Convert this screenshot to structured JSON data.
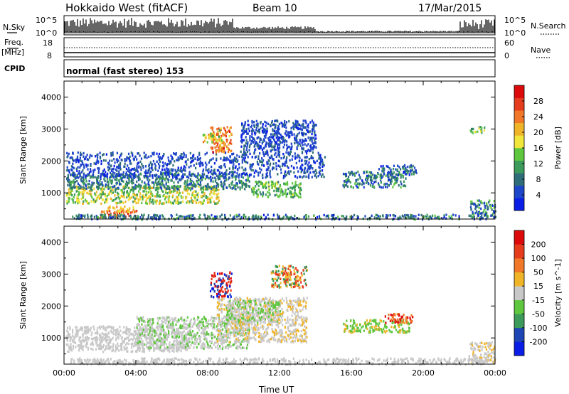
{
  "header": {
    "station": "Hokkaido West (fitACF)",
    "beam": "Beam 10",
    "date": "17/Mar/2015"
  },
  "strip": {
    "nsky_label": "N.Sky",
    "nsky_ticks": [
      "10^5",
      "10^0"
    ],
    "nsearch_label": "N.Search",
    "nsearch_ticks": [
      "10^5",
      "10^0"
    ],
    "freq_label_1": "Freq.",
    "freq_label_2": "[MHz]",
    "freq_ticks": [
      "18",
      "8"
    ],
    "nave_label": "Nave",
    "nave_ticks": [
      "60",
      "0"
    ],
    "cpid_label": "CPID",
    "cpid_text": "normal (fast stereo) 153"
  },
  "chart_data": [
    {
      "type": "heatmap",
      "name": "power",
      "ylabel": "Slant Range [km]",
      "xlabel": "",
      "y_ticks": [
        "1000",
        "2000",
        "3000",
        "4000"
      ],
      "ylim": [
        180,
        4500
      ],
      "xlim": [
        0,
        24
      ],
      "colorbar": {
        "label": "Power [dB]",
        "ticks": [
          "4",
          "8",
          "12",
          "16",
          "20",
          "24",
          "28"
        ],
        "colors": [
          "#0a1ee6",
          "#1e46c8",
          "#2f6e78",
          "#3c9a5a",
          "#5fc640",
          "#f0e63c",
          "#f0b428",
          "#f07828",
          "#e63c1e",
          "#dc0a0a"
        ],
        "range": [
          0,
          32
        ]
      },
      "regions": [
        {
          "t": [
            0.1,
            8.6
          ],
          "r": [
            700,
            1250
          ],
          "v": [
            12,
            16,
            20
          ]
        },
        {
          "t": [
            0.1,
            10.3
          ],
          "r": [
            1150,
            1650
          ],
          "v": [
            6,
            9,
            12
          ]
        },
        {
          "t": [
            0.1,
            14.5
          ],
          "r": [
            1500,
            2300
          ],
          "v": [
            3,
            5,
            7
          ]
        },
        {
          "t": [
            9.8,
            14.0
          ],
          "r": [
            2300,
            3300
          ],
          "v": [
            3,
            5,
            7
          ]
        },
        {
          "t": [
            10.4,
            13.2
          ],
          "r": [
            900,
            1400
          ],
          "v": [
            10,
            14,
            16
          ]
        },
        {
          "t": [
            2.0,
            4.2
          ],
          "r": [
            280,
            480
          ],
          "v": [
            24,
            28,
            30
          ]
        },
        {
          "t": [
            2.2,
            4.0
          ],
          "r": [
            430,
            620
          ],
          "v": [
            18,
            21,
            23
          ]
        },
        {
          "t": [
            8.1,
            9.3
          ],
          "r": [
            2300,
            3100
          ],
          "v": [
            20,
            24,
            28
          ]
        },
        {
          "t": [
            7.7,
            8.8
          ],
          "r": [
            2600,
            3000
          ],
          "v": [
            14,
            18,
            22
          ]
        },
        {
          "t": [
            15.5,
            19.0
          ],
          "r": [
            1200,
            1700
          ],
          "v": [
            4,
            8,
            12
          ]
        },
        {
          "t": [
            17.5,
            19.6
          ],
          "r": [
            1600,
            1900
          ],
          "v": [
            4,
            6,
            10
          ]
        },
        {
          "t": [
            22.6,
            24.0
          ],
          "r": [
            250,
            800
          ],
          "v": [
            4,
            8,
            14
          ]
        },
        {
          "t": [
            22.5,
            23.4
          ],
          "r": [
            2900,
            3100
          ],
          "v": [
            10,
            14,
            18
          ]
        },
        {
          "t": [
            0.3,
            23.5
          ],
          "r": [
            200,
            350
          ],
          "v": [
            4,
            8,
            12
          ]
        }
      ]
    },
    {
      "type": "heatmap",
      "name": "velocity",
      "ylabel": "Slant Range [km]",
      "xlabel": "Time UT",
      "y_ticks": [
        "1000",
        "2000",
        "3000",
        "4000"
      ],
      "x_ticks": [
        "00:00",
        "04:00",
        "08:00",
        "12:00",
        "16:00",
        "20:00",
        "00:00"
      ],
      "ylim": [
        180,
        4500
      ],
      "xlim": [
        0,
        24
      ],
      "colorbar": {
        "label": "Velocity [m s^-1]",
        "ticks": [
          "200",
          "100",
          "50",
          "15",
          "-15",
          "-50",
          "-100",
          "-200"
        ],
        "colors": [
          "#0a1ee6",
          "#1e46b4",
          "#3c9a5a",
          "#5fc640",
          "#c8c8c8",
          "#f0b428",
          "#f07828",
          "#e63c1e",
          "#dc0a0a"
        ],
        "range": [
          -250,
          250
        ]
      },
      "regions": [
        {
          "t": [
            0.1,
            7.0
          ],
          "r": [
            600,
            1400
          ],
          "v": [
            0,
            -5,
            5
          ]
        },
        {
          "t": [
            4.0,
            10.3
          ],
          "r": [
            700,
            1700
          ],
          "v": [
            -30,
            -20,
            0
          ]
        },
        {
          "t": [
            8.5,
            13.5
          ],
          "r": [
            900,
            2300
          ],
          "v": [
            20,
            30,
            0
          ]
        },
        {
          "t": [
            9.0,
            12.0
          ],
          "r": [
            1500,
            2200
          ],
          "v": [
            -30,
            25
          ]
        },
        {
          "t": [
            1.6,
            4.5
          ],
          "r": [
            200,
            330
          ],
          "v": [
            0,
            5
          ]
        },
        {
          "t": [
            8.1,
            9.3
          ],
          "r": [
            2300,
            3100
          ],
          "v": [
            150,
            210,
            -150,
            -210
          ]
        },
        {
          "t": [
            11.5,
            13.5
          ],
          "r": [
            2600,
            3300
          ],
          "v": [
            150,
            -120,
            40
          ]
        },
        {
          "t": [
            15.5,
            19.2
          ],
          "r": [
            1200,
            1600
          ],
          "v": [
            -60,
            -30,
            80
          ]
        },
        {
          "t": [
            17.8,
            19.4
          ],
          "r": [
            1500,
            1800
          ],
          "v": [
            200,
            120
          ]
        },
        {
          "t": [
            22.5,
            24.0
          ],
          "r": [
            250,
            900
          ],
          "v": [
            0,
            -20,
            30
          ]
        },
        {
          "t": [
            0.3,
            23.5
          ],
          "r": [
            200,
            400
          ],
          "v": [
            20,
            5,
            -5
          ]
        }
      ]
    }
  ]
}
